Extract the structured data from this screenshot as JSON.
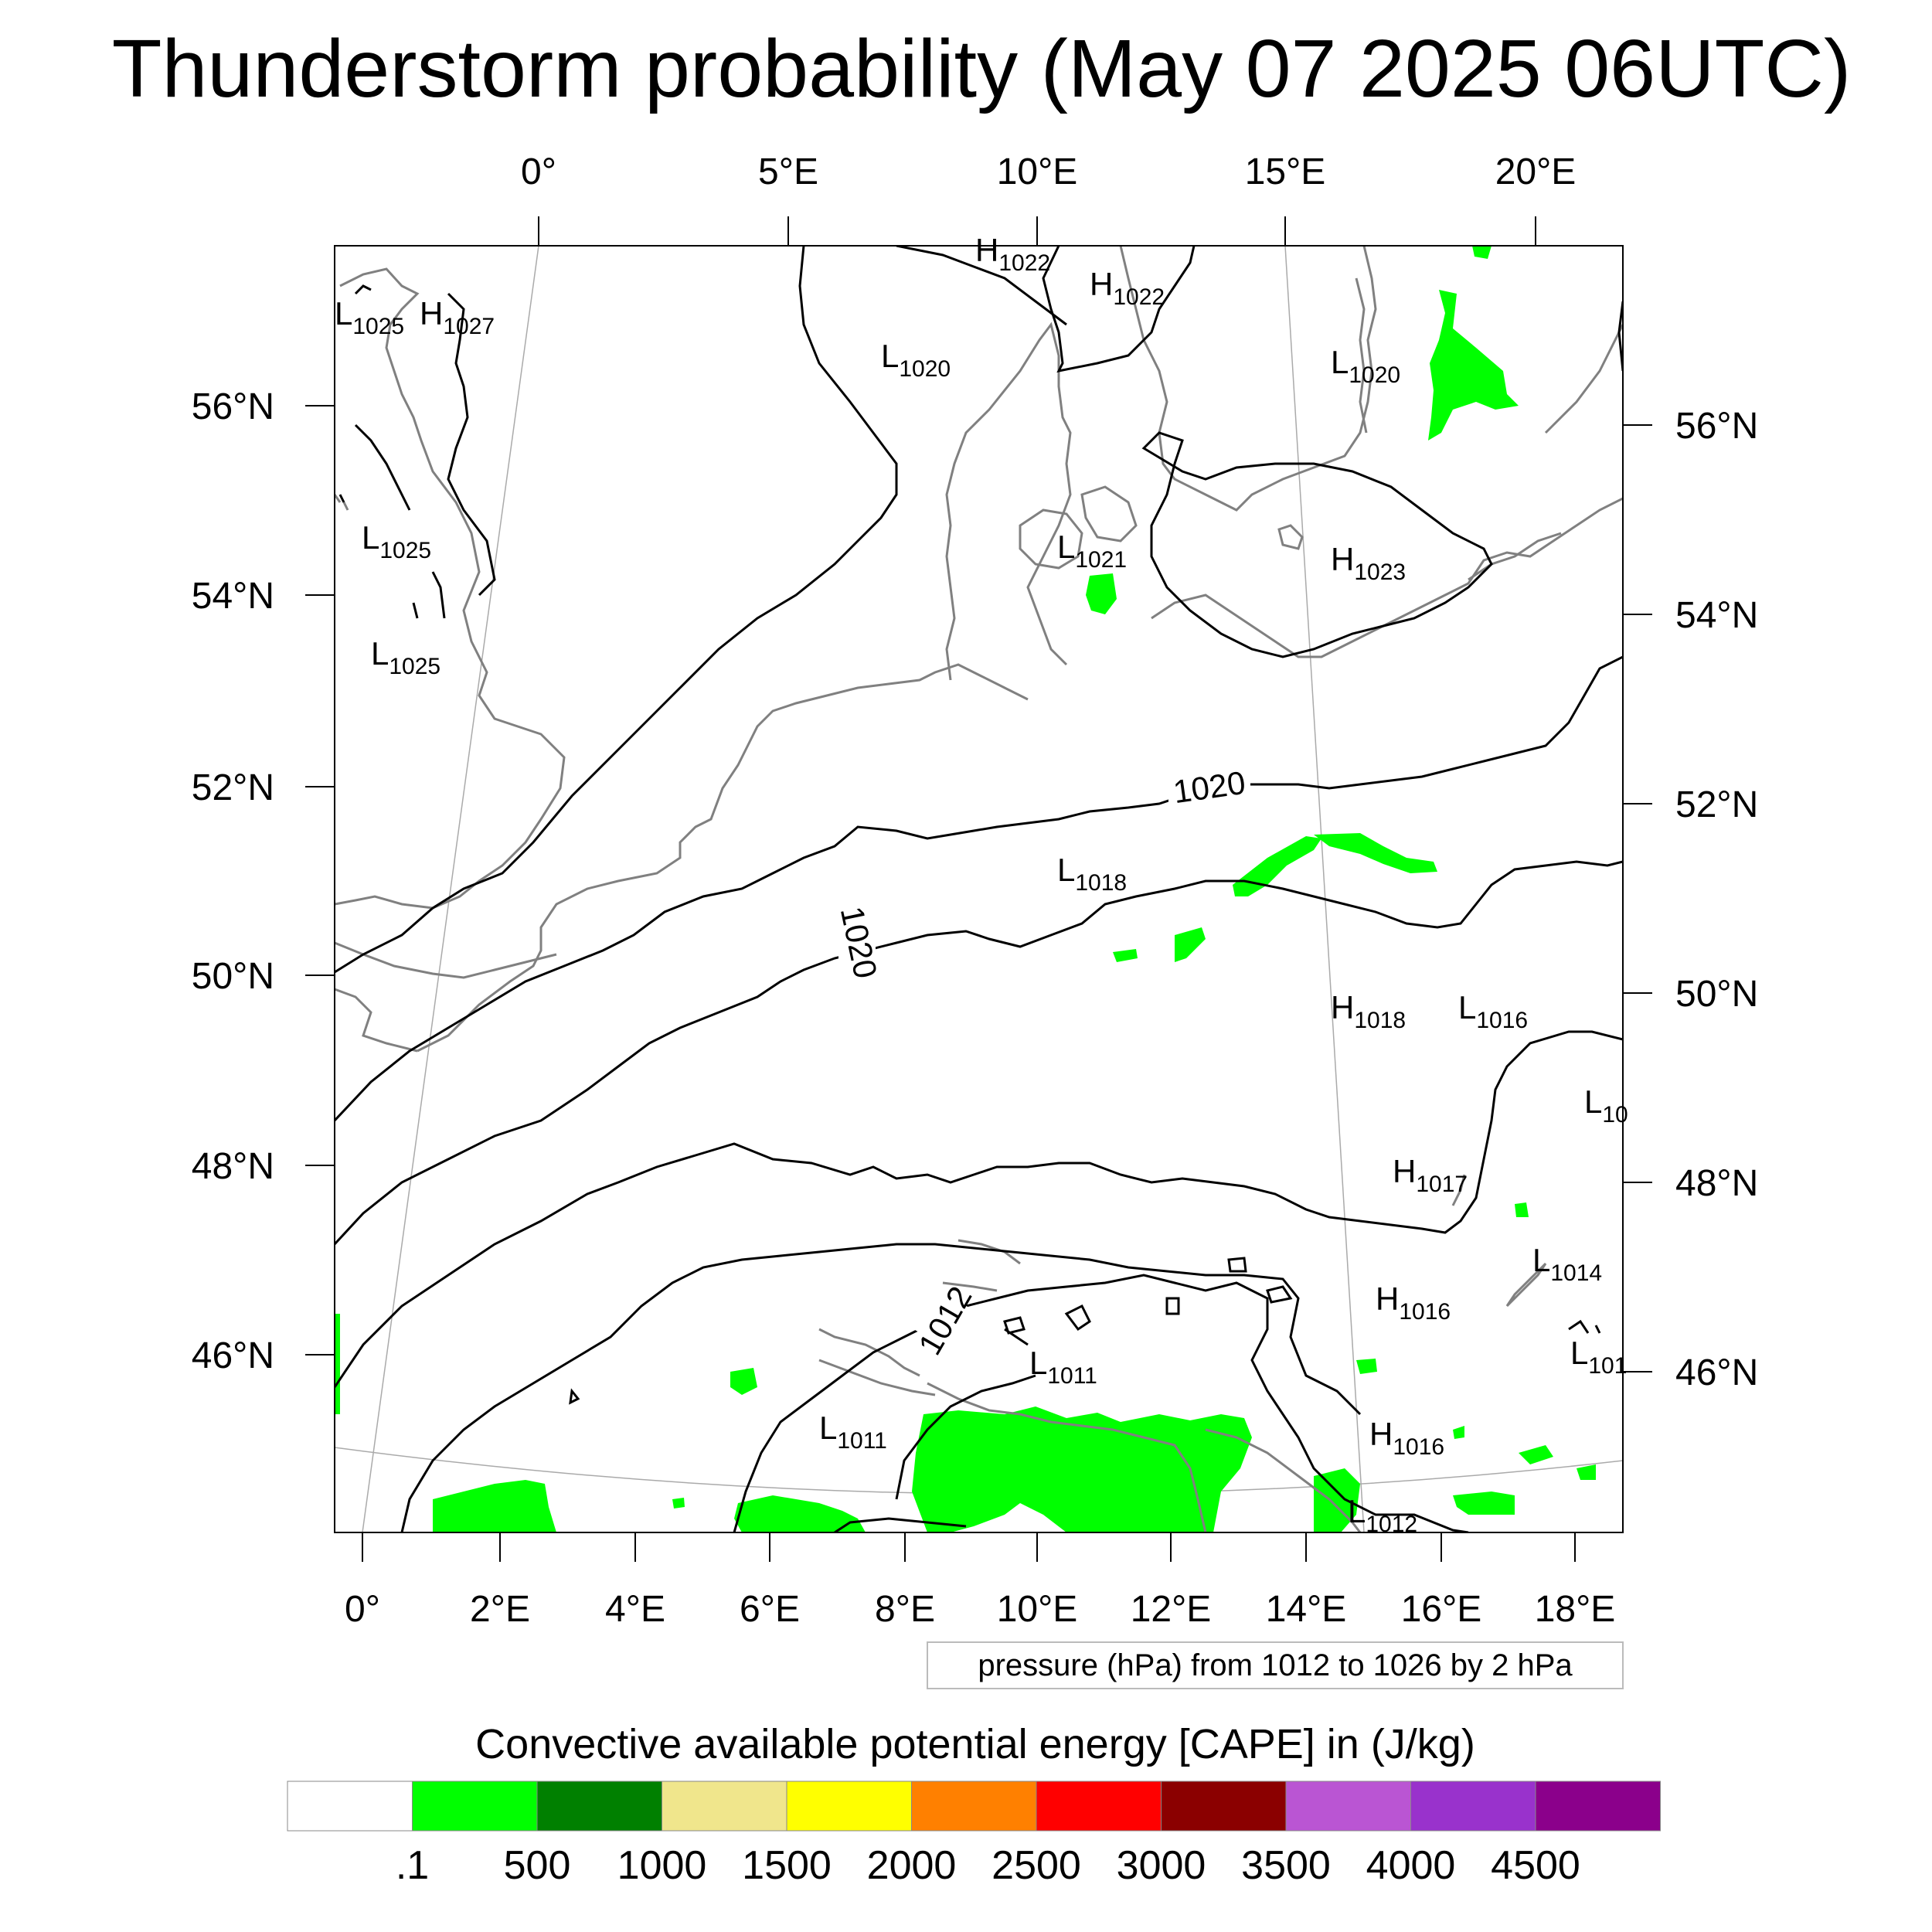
{
  "title": "Thunderstorm probability (May 07 2025 06UTC)",
  "map": {
    "top_lon_labels": [
      "0°",
      "5°E",
      "10°E",
      "15°E",
      "20°E"
    ],
    "bottom_lon_labels": [
      "0°",
      "2°E",
      "4°E",
      "6°E",
      "8°E",
      "10°E",
      "12°E",
      "14°E",
      "16°E",
      "18°E"
    ],
    "left_lat_labels": [
      "56°N",
      "54°N",
      "52°N",
      "50°N",
      "48°N",
      "46°N"
    ],
    "right_lat_labels": [
      "56°N",
      "54°N",
      "52°N",
      "50°N",
      "48°N",
      "46°N"
    ],
    "pressure_centers": [
      {
        "letter": "L",
        "value": "1025"
      },
      {
        "letter": "H",
        "value": "1027"
      },
      {
        "letter": "L",
        "value": "1025"
      },
      {
        "letter": "L",
        "value": "1025"
      },
      {
        "letter": "H",
        "value": "1022"
      },
      {
        "letter": "H",
        "value": "1022"
      },
      {
        "letter": "L",
        "value": "1020"
      },
      {
        "letter": "L",
        "value": "1020"
      },
      {
        "letter": "L",
        "value": "1021"
      },
      {
        "letter": "H",
        "value": "1023"
      },
      {
        "letter": "L",
        "value": "1018"
      },
      {
        "letter": "H",
        "value": "1018"
      },
      {
        "letter": "L",
        "value": "1016"
      },
      {
        "letter": "L",
        "value": "10"
      },
      {
        "letter": "H",
        "value": "1017"
      },
      {
        "letter": "L",
        "value": "1014"
      },
      {
        "letter": "H",
        "value": "1016"
      },
      {
        "letter": "L",
        "value": "101"
      },
      {
        "letter": "L",
        "value": "1011"
      },
      {
        "letter": "L",
        "value": "1011"
      },
      {
        "letter": "H",
        "value": "1016"
      },
      {
        "letter": "L",
        "value": "1012"
      }
    ],
    "contour_labels": [
      "1020",
      "1020",
      "1012"
    ],
    "info_box": "pressure (hPa) from 1012 to 1026 by 2 hPa",
    "colors": {
      "land_outline": "#808080",
      "isobar": "#000000",
      "cape_low": "#00ff00"
    }
  },
  "colorbar": {
    "title": "Convective available potential energy [CAPE] in (J/kg)",
    "colors": [
      "#ffffff",
      "#00ff00",
      "#008000",
      "#f0e68c",
      "#ffff00",
      "#ff8000",
      "#ff0000",
      "#8b0000",
      "#ba55d3",
      "#9932cc",
      "#8b008b"
    ],
    "labels": [
      ".1",
      "500",
      "1000",
      "1500",
      "2000",
      "2500",
      "3000",
      "3500",
      "4000",
      "4500"
    ]
  }
}
